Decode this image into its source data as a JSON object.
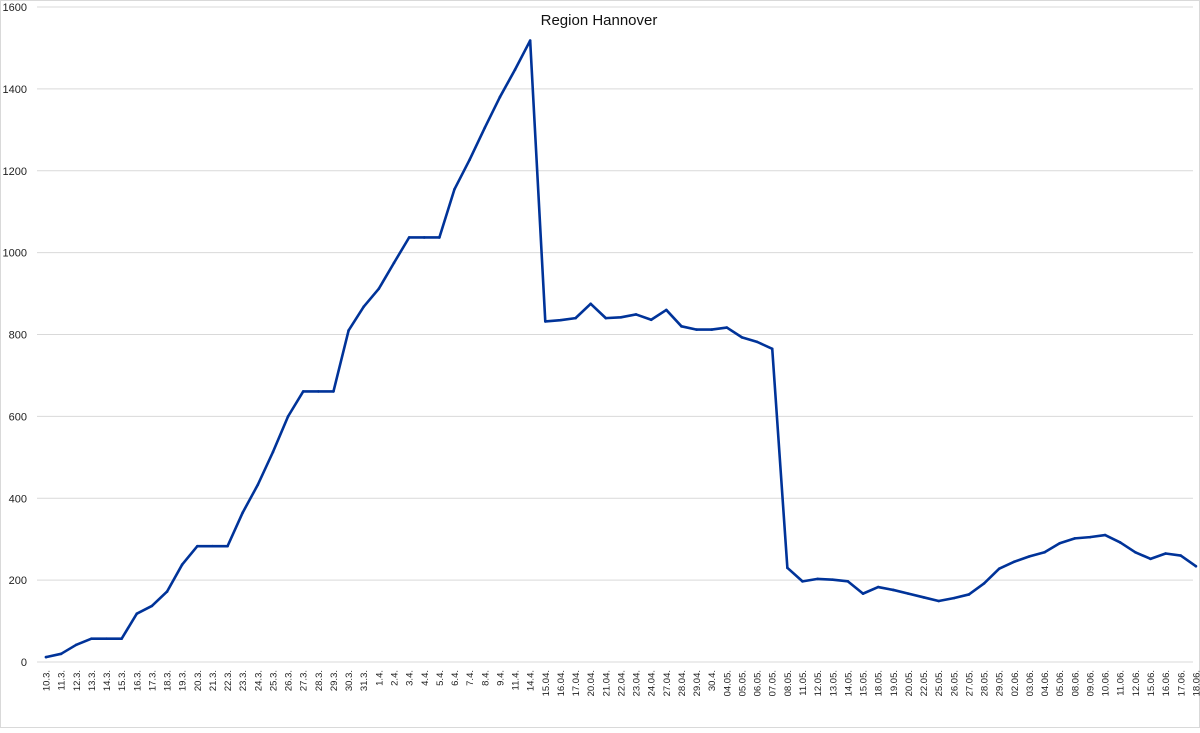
{
  "colors": {
    "line": "#003399",
    "grid": "#d9d9d9",
    "text": "#222222",
    "background": "#ffffff"
  },
  "chart_data": {
    "type": "line",
    "title": "Region Hannover",
    "xlabel": "",
    "ylabel": "",
    "ylim": [
      0,
      1600
    ],
    "yticks": [
      0,
      200,
      400,
      600,
      800,
      1000,
      1200,
      1400,
      1600
    ],
    "grid": true,
    "legend": "none",
    "categories": [
      "10.3.",
      "11.3.",
      "12.3.",
      "13.3.",
      "14.3.",
      "15.3.",
      "16.3.",
      "17.3.",
      "18.3.",
      "19.3.",
      "20.3.",
      "21.3.",
      "22.3.",
      "23.3.",
      "24.3.",
      "25.3.",
      "26.3.",
      "27.3.",
      "28.3.",
      "29.3.",
      "30.3.",
      "31.3.",
      "1.4.",
      "2.4.",
      "3.4.",
      "4.4.",
      "5.4.",
      "6.4.",
      "7.4.",
      "8.4.",
      "9.4.",
      "11.4.",
      "14.4.",
      "15.04.",
      "16.04.",
      "17.04.",
      "20.04.",
      "21.04.",
      "22.04.",
      "23.04.",
      "24.04.",
      "27.04.",
      "28.04.",
      "29.04.",
      "30.4.",
      "04.05.",
      "05.05.",
      "06.05.",
      "07.05.",
      "08.05.",
      "11.05.",
      "12.05.",
      "13.05.",
      "14.05.",
      "15.05.",
      "18.05.",
      "19.05.",
      "20.05.",
      "22.05.",
      "25.05.",
      "26.05.",
      "27.05.",
      "28.05.",
      "29.05.",
      "02.06.",
      "03.06.",
      "04.06.",
      "05.06.",
      "08.06.",
      "09.06.",
      "10.06.",
      "11.06.",
      "12.06.",
      "15.06.",
      "16.06.",
      "17.06.",
      "18.06."
    ],
    "series": [
      {
        "values": [
          12,
          20,
          42,
          57,
          57,
          57,
          118,
          137,
          172,
          238,
          283,
          283,
          283,
          365,
          433,
          513,
          600,
          661,
          661,
          661,
          810,
          868,
          912,
          975,
          1037,
          1037,
          1037,
          1155,
          1227,
          1305,
          1380,
          1447,
          1518,
          832,
          835,
          840,
          875,
          840,
          842,
          849,
          836,
          860,
          820,
          812,
          812,
          817,
          793,
          782,
          765,
          230,
          197,
          203,
          201,
          197,
          167,
          183,
          176,
          167,
          158,
          149,
          156,
          165,
          192,
          228,
          245,
          258,
          268,
          290,
          302,
          305,
          310,
          292,
          268,
          252,
          265,
          260,
          234
        ]
      }
    ]
  }
}
